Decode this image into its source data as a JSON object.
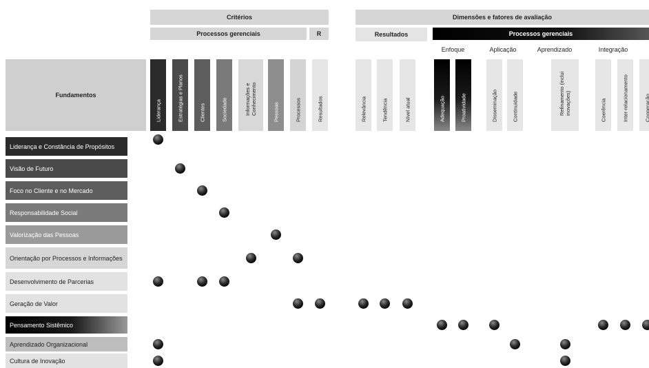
{
  "headers": {
    "criterios": "Critérios",
    "processos_gerenciais": "Processos gerenciais",
    "r": "R",
    "dimensoes": "Dimensões e fatores de avaliação",
    "resultados": "Resultados",
    "processos_gerenciais_dark": "Processos gerenciais",
    "fundamentos": "Fundamentos"
  },
  "subheaders": [
    "Enfoque",
    "Aplicação",
    "Aprendizado",
    "Integração"
  ],
  "columns": [
    {
      "label": "Liderança",
      "shade": "#2b2b2b",
      "text": "#ffffff"
    },
    {
      "label": "Estratégias e Planos",
      "shade": "#4a4a4a",
      "text": "#ffffff"
    },
    {
      "label": "Clientes",
      "shade": "#5d5d5d",
      "text": "#ffffff"
    },
    {
      "label": "Sociedade",
      "shade": "#7a7a7a",
      "text": "#ffffff"
    },
    {
      "label": "Informações e Conhecimento",
      "shade": "#d8d8d8",
      "text": "#222222"
    },
    {
      "label": "Pessoas",
      "shade": "#8e8e8e",
      "text": "#ffffff"
    },
    {
      "label": "Processos",
      "shade": "#d4d4d4",
      "text": "#222222"
    },
    {
      "label": "Resultados",
      "shade": "#e6e6e6",
      "text": "#222222"
    },
    {
      "label": "Relevância",
      "shade": "#e6e6e6",
      "text": "#222222"
    },
    {
      "label": "Tendência",
      "shade": "#e6e6e6",
      "text": "#222222"
    },
    {
      "label": "Nível atual",
      "shade": "#e6e6e6",
      "text": "#222222"
    },
    {
      "label": "Adequação",
      "shade": "gradient-dark",
      "text": "#ffffff"
    },
    {
      "label": "Proatividade",
      "shade": "gradient-dark",
      "text": "#ffffff"
    },
    {
      "label": "Disseminação",
      "shade": "#e6e6e6",
      "text": "#222222"
    },
    {
      "label": "Continuidade",
      "shade": "#e6e6e6",
      "text": "#222222"
    },
    {
      "label": "Refinamento (inclui inovações)",
      "shade": "#e6e6e6",
      "text": "#222222"
    },
    {
      "label": "Coerência",
      "shade": "#e6e6e6",
      "text": "#222222"
    },
    {
      "label": "Inter-relacionamento",
      "shade": "#e6e6e6",
      "text": "#222222"
    },
    {
      "label": "Cooperação",
      "shade": "#e6e6e6",
      "text": "#222222"
    }
  ],
  "rows": [
    {
      "label": "Liderança e Constância de Propósitos",
      "bg": "#2b2b2b",
      "color": "#ffffff",
      "dots": [
        0
      ]
    },
    {
      "label": "Visão de Futuro",
      "bg": "#4a4a4a",
      "color": "#ffffff",
      "dots": [
        1
      ]
    },
    {
      "label": "Foco no Cliente e no Mercado",
      "bg": "#5d5d5d",
      "color": "#ffffff",
      "dots": [
        2
      ]
    },
    {
      "label": "Responsabilidade Social",
      "bg": "#7a7a7a",
      "color": "#ffffff",
      "dots": [
        3
      ]
    },
    {
      "label": "Valorização das Pessoas",
      "bg": "#9a9a9a",
      "color": "#ffffff",
      "dots": [
        5
      ]
    },
    {
      "label": "Orientação por Processos e Informações",
      "bg": "#d6d6d6",
      "color": "#222222",
      "dots": [
        4,
        6
      ]
    },
    {
      "label": "Desenvolvimento de Parcerias",
      "bg": "#e2e2e2",
      "color": "#222222",
      "dots": [
        0,
        2,
        3
      ]
    },
    {
      "label": "Geração de Valor",
      "bg": "#e2e2e2",
      "color": "#222222",
      "dots": [
        6,
        7,
        8,
        9,
        10
      ]
    },
    {
      "label": "Pensamento Sistêmico",
      "bg": "gradient-dark",
      "color": "#ffffff",
      "dots": [
        11,
        12,
        13,
        16,
        17,
        18
      ]
    },
    {
      "label": "Aprendizado Organizacional",
      "bg": "#bdbdbd",
      "color": "#222222",
      "dots": [
        0,
        14,
        15
      ]
    },
    {
      "label": "Cultura de Inovação",
      "bg": "#e2e2e2",
      "color": "#222222",
      "dots": [
        0,
        15
      ]
    }
  ]
}
